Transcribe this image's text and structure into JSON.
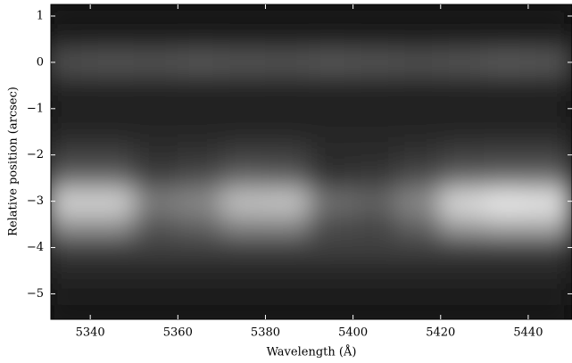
{
  "chart_data": {
    "type": "heatmap",
    "xlabel": "Wavelength (Å)",
    "ylabel": "Relative position (arcsec)",
    "colormap": "gray",
    "x": [
      5335,
      5345,
      5355,
      5365,
      5375,
      5385,
      5395,
      5405,
      5415,
      5425,
      5435,
      5445
    ],
    "y": [
      1,
      0.5,
      0,
      -0.5,
      -1,
      -1.5,
      -2,
      -2.5,
      -3,
      -3.5,
      -4,
      -4.5,
      -5,
      -5.5
    ],
    "cell_width": 10,
    "cell_height": 0.5,
    "z": [
      [
        0.08,
        0.08,
        0.08,
        0.08,
        0.08,
        0.08,
        0.08,
        0.08,
        0.08,
        0.08,
        0.08,
        0.08
      ],
      [
        0.12,
        0.12,
        0.12,
        0.12,
        0.12,
        0.12,
        0.12,
        0.12,
        0.12,
        0.12,
        0.12,
        0.12
      ],
      [
        0.33,
        0.35,
        0.34,
        0.36,
        0.35,
        0.34,
        0.36,
        0.35,
        0.33,
        0.35,
        0.37,
        0.36
      ],
      [
        0.15,
        0.15,
        0.15,
        0.15,
        0.15,
        0.15,
        0.15,
        0.15,
        0.15,
        0.15,
        0.15,
        0.15
      ],
      [
        0.1,
        0.1,
        0.1,
        0.1,
        0.1,
        0.1,
        0.1,
        0.1,
        0.1,
        0.1,
        0.1,
        0.1
      ],
      [
        0.15,
        0.15,
        0.15,
        0.15,
        0.15,
        0.15,
        0.15,
        0.15,
        0.15,
        0.15,
        0.15,
        0.15
      ],
      [
        0.24,
        0.24,
        0.18,
        0.2,
        0.24,
        0.24,
        0.16,
        0.17,
        0.2,
        0.24,
        0.25,
        0.25
      ],
      [
        0.4,
        0.4,
        0.25,
        0.3,
        0.4,
        0.38,
        0.2,
        0.22,
        0.3,
        0.4,
        0.42,
        0.42
      ],
      [
        0.85,
        0.85,
        0.5,
        0.55,
        0.78,
        0.8,
        0.45,
        0.4,
        0.55,
        0.88,
        0.95,
        0.92
      ],
      [
        0.6,
        0.6,
        0.35,
        0.4,
        0.55,
        0.55,
        0.3,
        0.28,
        0.4,
        0.65,
        0.7,
        0.7
      ],
      [
        0.25,
        0.25,
        0.25,
        0.25,
        0.25,
        0.25,
        0.25,
        0.25,
        0.25,
        0.25,
        0.25,
        0.25
      ],
      [
        0.15,
        0.15,
        0.15,
        0.15,
        0.15,
        0.15,
        0.15,
        0.15,
        0.15,
        0.15,
        0.15,
        0.15
      ],
      [
        0.12,
        0.12,
        0.12,
        0.12,
        0.12,
        0.12,
        0.12,
        0.12,
        0.12,
        0.12,
        0.12,
        0.12
      ],
      [
        0.08,
        0.08,
        0.08,
        0.08,
        0.08,
        0.08,
        0.08,
        0.08,
        0.08,
        0.08,
        0.08,
        0.08
      ]
    ],
    "xlim": [
      5331,
      5450
    ],
    "ylim": [
      -5.55,
      1.25
    ],
    "xticks": [
      5340,
      5360,
      5380,
      5400,
      5420,
      5440
    ],
    "yticks": [
      1,
      0,
      {
        "value": -1,
        "label": "−1"
      },
      {
        "value": -2,
        "label": "−2"
      },
      {
        "value": -3,
        "label": "−3"
      },
      {
        "value": -4,
        "label": "−4"
      },
      {
        "value": -5,
        "label": "−5"
      }
    ]
  }
}
